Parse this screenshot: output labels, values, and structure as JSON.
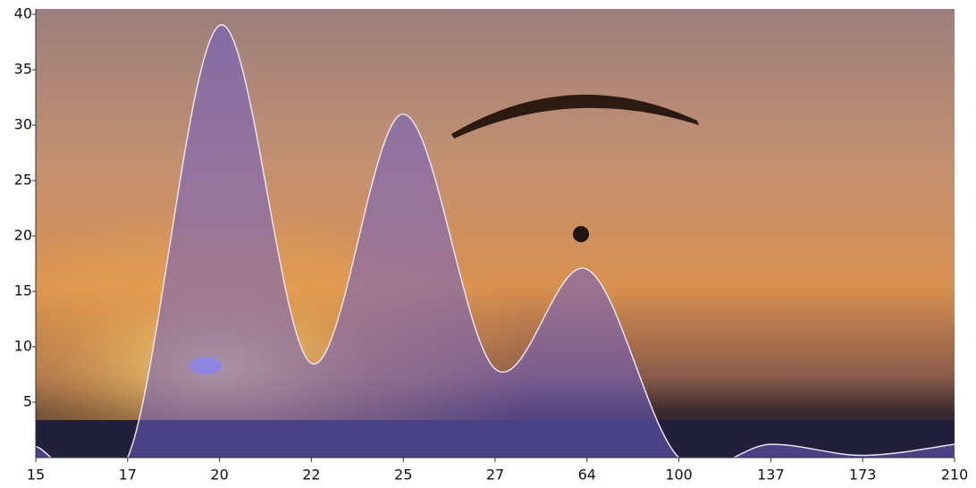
{
  "chart_data": {
    "type": "area",
    "categories": [
      "15",
      "17",
      "20",
      "22",
      "25",
      "27",
      "64",
      "100",
      "137",
      "173",
      "210"
    ],
    "series": [
      {
        "color": "#6e5cc4",
        "values": [
          1,
          0,
          39,
          8.5,
          31,
          8,
          17,
          0,
          1.2,
          0.2,
          1.2
        ]
      }
    ],
    "ylim": [
      0,
      40
    ],
    "yticks": [
      5,
      10,
      15,
      20,
      25,
      30,
      35,
      40
    ],
    "smooth": true
  }
}
